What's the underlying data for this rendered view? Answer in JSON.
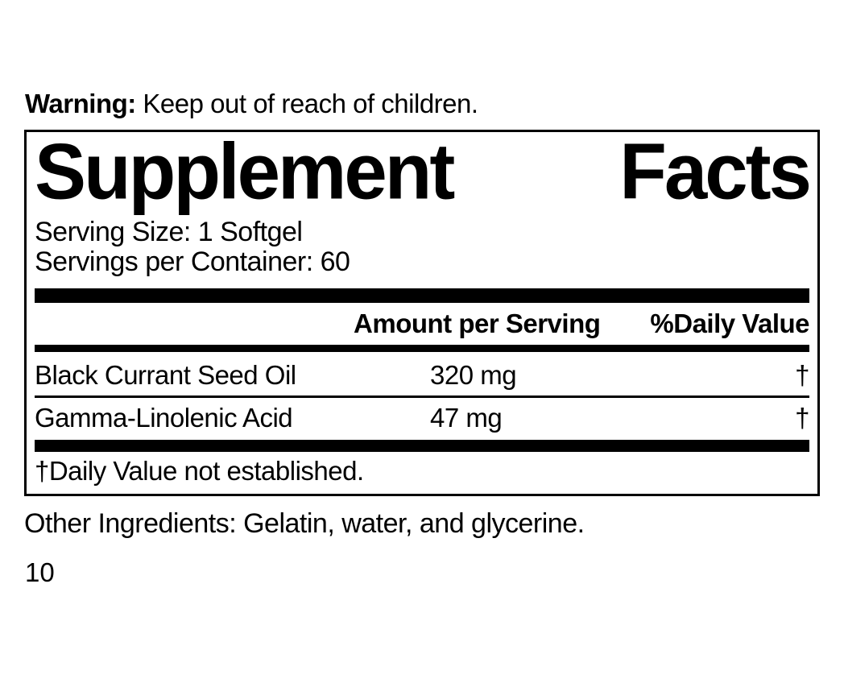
{
  "warning": {
    "label": "Warning:",
    "text": " Keep out of reach of children."
  },
  "panel": {
    "title_words": [
      "Supplement",
      "Facts"
    ],
    "serving_size": "Serving Size: 1 Softgel",
    "servings_per_container": "Servings per Container: 60",
    "columns": {
      "amount": "Amount per Serving",
      "daily_value": "%Daily Value"
    },
    "rows": [
      {
        "name": "Black Currant Seed Oil",
        "amount": "320 mg",
        "daily_value": "†"
      },
      {
        "name": "Gamma-Linolenic Acid",
        "amount": "47 mg",
        "daily_value": "†"
      }
    ],
    "footnote": "†Daily Value not established."
  },
  "other_ingredients": "Other Ingredients: Gelatin, water, and glycerine.",
  "page_number": "10",
  "colors": {
    "ink": "#000000",
    "background": "#ffffff"
  }
}
